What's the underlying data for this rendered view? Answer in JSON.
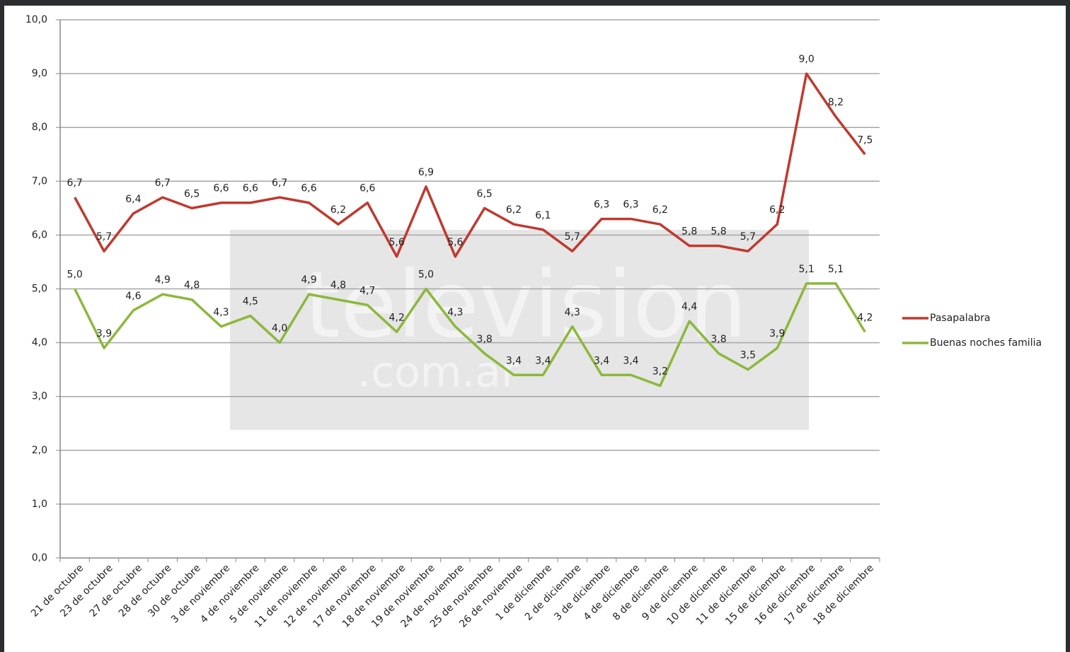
{
  "chart_data": {
    "type": "line",
    "watermark": [
      "television",
      ".com.ar"
    ],
    "categories": [
      "21 de octubre",
      "23 de octubre",
      "27 de octubre",
      "28 de octubre",
      "30 de octubre",
      "3 de noviembre",
      "4 de noviembre",
      "5 de noviembre",
      "11 de noviembre",
      "12 de noviembre",
      "17 de noviembre",
      "18 de noviembre",
      "19 de noviembre",
      "24 de noviembre",
      "25 de noviembre",
      "26 de noviembre",
      "1 de diciembre",
      "2 de diciembre",
      "3 de diciembre",
      "4 de diciembre",
      "8 de diciembre",
      "9 de diciembre",
      "10 de diciembre",
      "11 de diciembre",
      "15 de diciembre",
      "16 de diciembre",
      "17 de diciembre",
      "18 de diciembre"
    ],
    "series": [
      {
        "name": "Pasapalabra",
        "color": "#c0392f",
        "values": [
          6.7,
          5.7,
          6.4,
          6.7,
          6.5,
          6.6,
          6.6,
          6.7,
          6.6,
          6.2,
          6.6,
          5.6,
          6.9,
          5.6,
          6.5,
          6.2,
          6.1,
          5.7,
          6.3,
          6.3,
          6.2,
          5.8,
          5.8,
          5.7,
          6.2,
          9.0,
          8.2,
          7.5
        ],
        "value_labels": [
          "6,7",
          "5,7",
          "6,4",
          "6,7",
          "6,5",
          "6,6",
          "6,6",
          "6,7",
          "6,6",
          "6,2",
          "6,6",
          "5,6",
          "6,9",
          "5,6",
          "6,5",
          "6,2",
          "6,1",
          "5,7",
          "6,3",
          "6,3",
          "6,2",
          "5,8",
          "5,8",
          "5,7",
          "6,2",
          "9,0",
          "8,2",
          "7,5"
        ]
      },
      {
        "name": "Buenas noches familia",
        "color": "#8cb83c",
        "values": [
          5.0,
          3.9,
          4.6,
          4.9,
          4.8,
          4.3,
          4.5,
          4.0,
          4.9,
          4.8,
          4.7,
          4.2,
          5.0,
          4.3,
          3.8,
          3.4,
          3.4,
          4.3,
          3.4,
          3.4,
          3.2,
          4.4,
          3.8,
          3.5,
          3.9,
          5.1,
          5.1,
          4.2
        ],
        "value_labels": [
          "5,0",
          "3,9",
          "4,6",
          "4,9",
          "4,8",
          "4,3",
          "4,5",
          "4,0",
          "4,9",
          "4,8",
          "4,7",
          "4,2",
          "5,0",
          "4,3",
          "3,8",
          "3,4",
          "3,4",
          "4,3",
          "3,4",
          "3,4",
          "3,2",
          "4,4",
          "3,8",
          "3,5",
          "3,9",
          "5,1",
          "5,1",
          "4,2"
        ]
      }
    ],
    "ylim": [
      0,
      10
    ],
    "yticks": [
      {
        "value": 0,
        "label": "0,0"
      },
      {
        "value": 1,
        "label": "1,0"
      },
      {
        "value": 2,
        "label": "2,0"
      },
      {
        "value": 3,
        "label": "3,0"
      },
      {
        "value": 4,
        "label": "4,0"
      },
      {
        "value": 5,
        "label": "5,0"
      },
      {
        "value": 6,
        "label": "6,0"
      },
      {
        "value": 7,
        "label": "7,0"
      },
      {
        "value": 8,
        "label": "8,0"
      },
      {
        "value": 9,
        "label": "9,0"
      },
      {
        "value": 10,
        "label": "10,0"
      }
    ],
    "grid": true,
    "legend": "right"
  }
}
